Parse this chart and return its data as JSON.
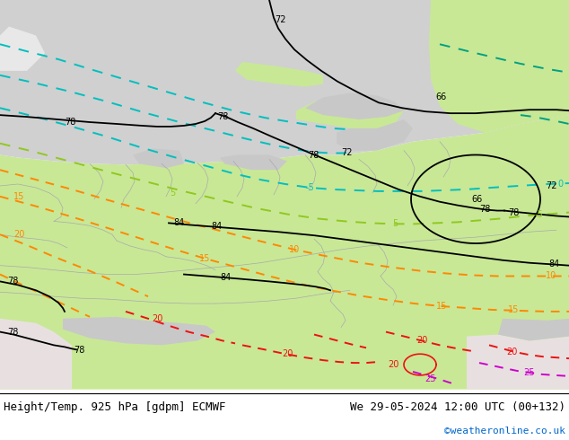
{
  "title_left": "Height/Temp. 925 hPa [gdpm] ECMWF",
  "title_right": "We 29-05-2024 12:00 UTC (00+132)",
  "credit": "©weatheronline.co.uk",
  "title_fontsize": 9,
  "credit_fontsize": 8,
  "credit_color": "#0066cc",
  "map_green": "#c8e896",
  "map_grey": "#c8c8c8",
  "map_light_grey": "#d8d8d8",
  "map_pink": "#e8e0e0",
  "map_sea": "#d0d0d0",
  "contour_black_lw": 1.3,
  "contour_temp_lw": 1.4,
  "cyan_color": "#00bfbf",
  "teal_color": "#00a080",
  "lime_color": "#90c820",
  "orange_color": "#ff8800",
  "red_color": "#ee1111",
  "magenta_color": "#cc00cc",
  "border_color": "#aaaaaa",
  "border_lw": 0.5
}
